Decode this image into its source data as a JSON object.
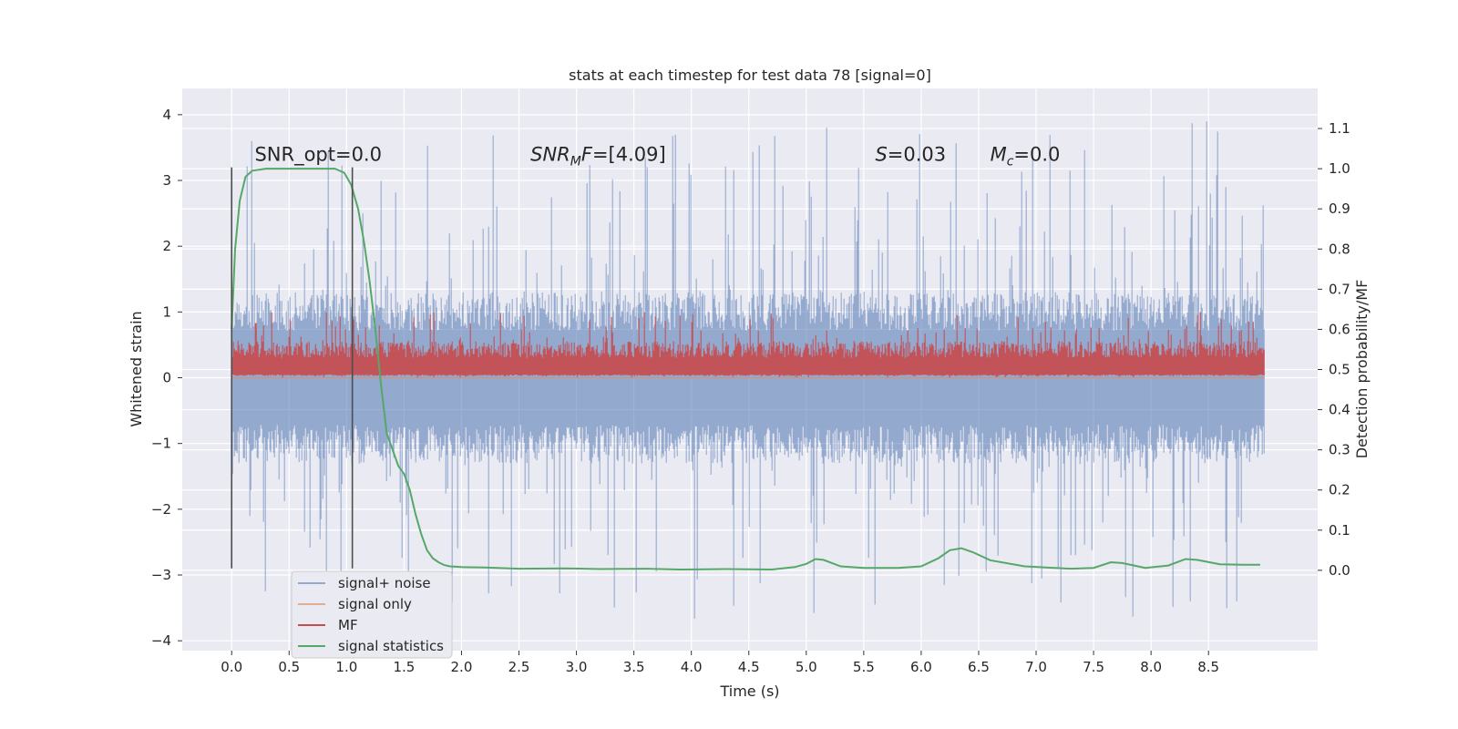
{
  "chart_data": {
    "type": "line",
    "title": "stats at each timestep for test data 78 [signal=0]",
    "xlabel": "Time (s)",
    "ylabel_left": "Whitened strain",
    "ylabel_right": "Detection probability/MF",
    "xlim": [
      -0.43,
      9.45
    ],
    "ylim_left": [
      -4.15,
      4.4
    ],
    "ylim_right": [
      -0.2,
      1.2
    ],
    "x_ticks": [
      0.0,
      0.5,
      1.0,
      1.5,
      2.0,
      2.5,
      3.0,
      3.5,
      4.0,
      4.5,
      5.0,
      5.5,
      6.0,
      6.5,
      7.0,
      7.5,
      8.0,
      8.5
    ],
    "x_tick_labels": [
      "0.0",
      "0.5",
      "1.0",
      "1.5",
      "2.0",
      "2.5",
      "3.0",
      "3.5",
      "4.0",
      "4.5",
      "5.0",
      "5.5",
      "6.0",
      "6.5",
      "7.0",
      "7.5",
      "8.0",
      "8.5"
    ],
    "y_ticks_left": [
      4,
      3,
      2,
      1,
      0,
      -1,
      -2,
      -3,
      -4
    ],
    "y_tick_labels_left": [
      "4",
      "3",
      "2",
      "1",
      "0",
      "−1",
      "−2",
      "−3",
      "−4"
    ],
    "y_ticks_right": [
      1.1,
      1.0,
      0.9,
      0.8,
      0.7,
      0.6,
      0.5,
      0.4,
      0.3,
      0.2,
      0.1,
      0.0
    ],
    "y_tick_labels_right": [
      "1.1",
      "1.0",
      "0.9",
      "0.8",
      "0.7",
      "0.6",
      "0.5",
      "0.4",
      "0.3",
      "0.2",
      "0.1",
      "0.0"
    ],
    "grid": true,
    "legend_position": "lower-left",
    "annotations": [
      {
        "id": "snr-opt",
        "parts": [
          {
            "t": "SNR_opt=0.0",
            "i": false
          }
        ],
        "x": 0.2,
        "y_right": 1.02
      },
      {
        "id": "snr-mf",
        "parts": [
          {
            "t": "SNR",
            "i": true
          },
          {
            "t": "M",
            "i": true,
            "sub": true
          },
          {
            "t": "F",
            "i": true
          },
          {
            "t": "=[4.09]",
            "i": false
          }
        ],
        "x": 2.6,
        "y_right": 1.02
      },
      {
        "id": "s-stat",
        "parts": [
          {
            "t": "S",
            "i": true
          },
          {
            "t": "=0.03",
            "i": false
          }
        ],
        "x": 5.6,
        "y_right": 1.02
      },
      {
        "id": "mc",
        "parts": [
          {
            "t": "M",
            "i": true
          },
          {
            "t": "c",
            "i": true,
            "sub": true
          },
          {
            "t": "=0.0",
            "i": false
          }
        ],
        "x": 6.6,
        "y_right": 1.02
      }
    ],
    "vertical_lines": [
      {
        "x": 0.0,
        "ymin": -2.9,
        "ymax": 3.2
      },
      {
        "x": 1.05,
        "ymin": -2.9,
        "ymax": 3.2
      }
    ],
    "series": [
      {
        "name": "signal+ noise",
        "axis": "left",
        "color": "#4c72b0",
        "style": "noise-band",
        "x_range": [
          0.0,
          8.99
        ],
        "typical_range": [
          -1.3,
          1.3
        ],
        "extreme_range": [
          -3.7,
          4.03
        ],
        "seed": 78
      },
      {
        "name": "signal only",
        "axis": "left",
        "color": "#dd8452",
        "x": [
          0.0,
          8.99
        ],
        "y": [
          0.0,
          0.0
        ]
      },
      {
        "name": "MF",
        "axis": "left",
        "color": "#c44e52",
        "style": "noise-band",
        "x_range": [
          0.0,
          8.99
        ],
        "typical_range": [
          0.05,
          0.55
        ],
        "extreme_range": [
          0.0,
          1.0
        ],
        "seed": 7
      },
      {
        "name": "signal statistics",
        "axis": "right",
        "color": "#55a868",
        "x": [
          0.0,
          0.03,
          0.07,
          0.12,
          0.18,
          0.3,
          0.5,
          0.7,
          0.9,
          0.98,
          1.04,
          1.1,
          1.15,
          1.2,
          1.25,
          1.3,
          1.35,
          1.4,
          1.45,
          1.5,
          1.55,
          1.6,
          1.65,
          1.7,
          1.75,
          1.8,
          1.85,
          1.9,
          2.0,
          2.2,
          2.5,
          2.9,
          3.2,
          3.6,
          3.9,
          4.3,
          4.7,
          4.9,
          5.0,
          5.08,
          5.15,
          5.3,
          5.5,
          5.8,
          6.0,
          6.15,
          6.25,
          6.35,
          6.45,
          6.6,
          6.9,
          7.3,
          7.5,
          7.65,
          7.75,
          7.95,
          8.15,
          8.3,
          8.4,
          8.6,
          8.8,
          8.95
        ],
        "y": [
          0.6,
          0.8,
          0.92,
          0.98,
          0.995,
          1.0,
          1.0,
          1.0,
          1.0,
          0.99,
          0.96,
          0.9,
          0.82,
          0.72,
          0.6,
          0.46,
          0.34,
          0.3,
          0.26,
          0.24,
          0.2,
          0.14,
          0.09,
          0.05,
          0.03,
          0.02,
          0.013,
          0.01,
          0.008,
          0.007,
          0.004,
          0.005,
          0.003,
          0.004,
          0.002,
          0.003,
          0.002,
          0.008,
          0.016,
          0.028,
          0.026,
          0.01,
          0.006,
          0.006,
          0.01,
          0.03,
          0.05,
          0.055,
          0.045,
          0.025,
          0.01,
          0.004,
          0.006,
          0.02,
          0.018,
          0.006,
          0.012,
          0.028,
          0.026,
          0.015,
          0.014,
          0.014
        ]
      }
    ]
  }
}
